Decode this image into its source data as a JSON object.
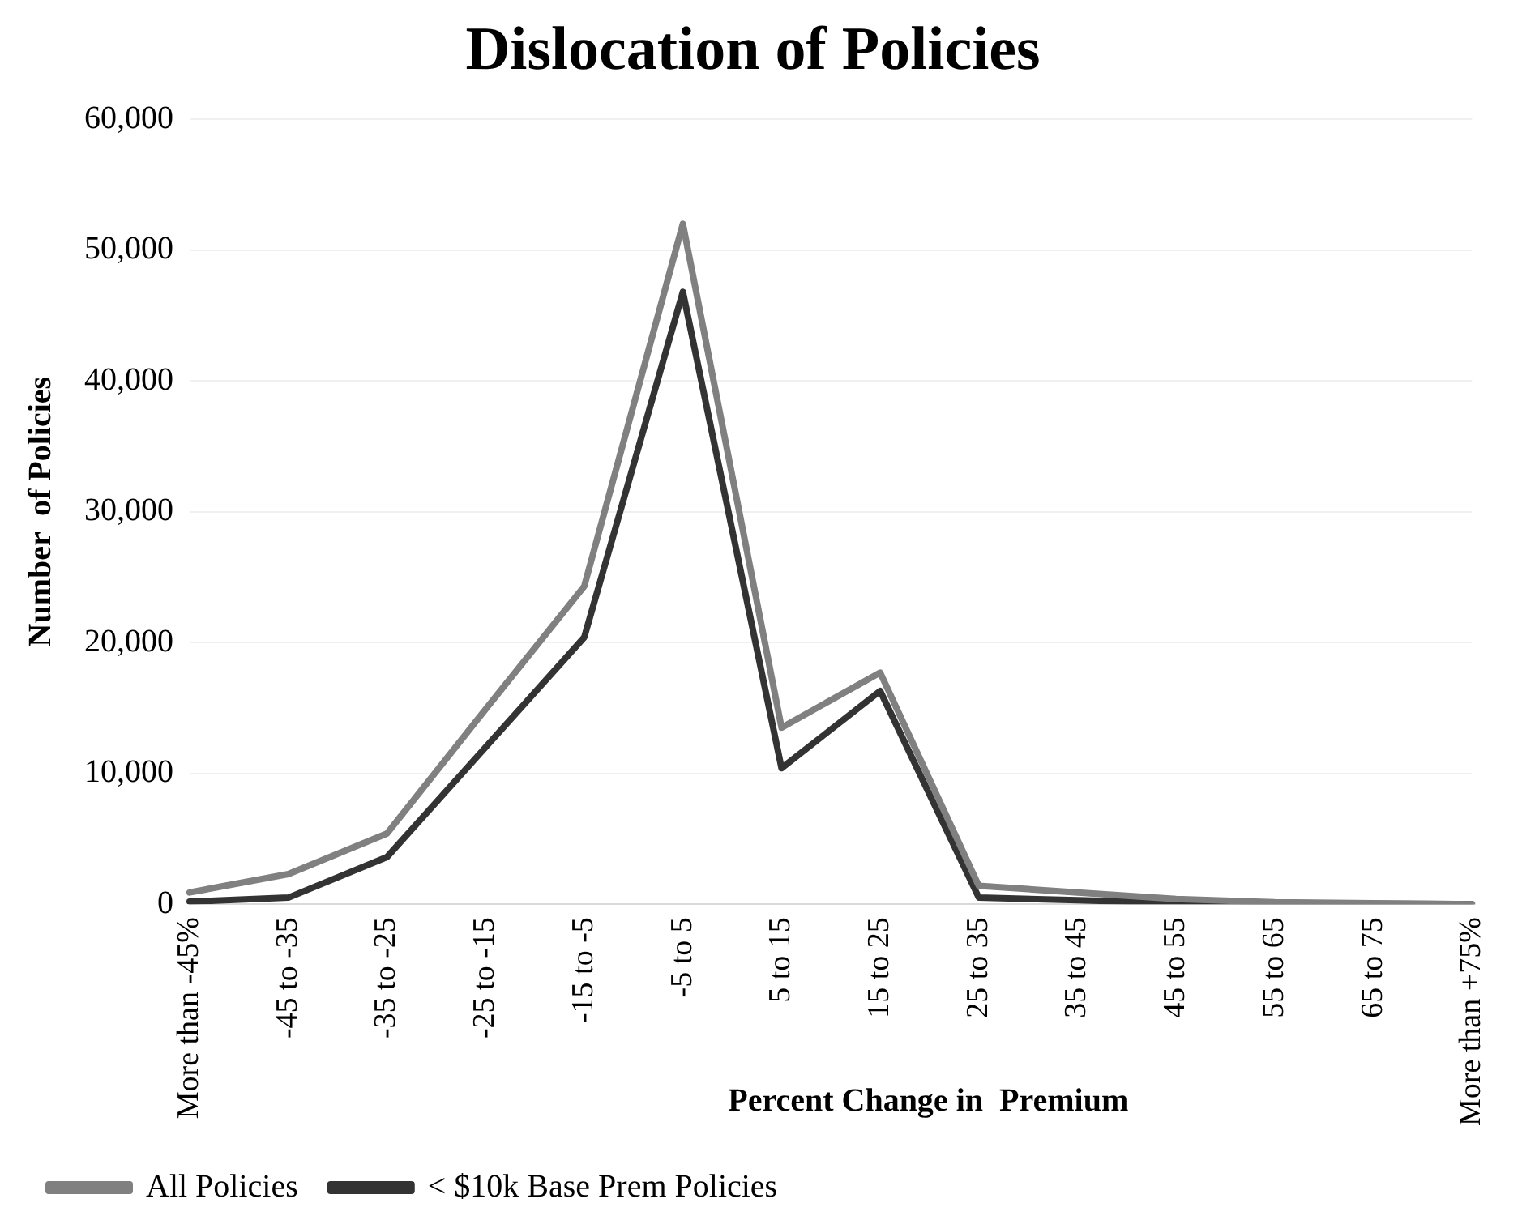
{
  "chart_data": {
    "type": "line",
    "title": "Dislocation of Policies",
    "xlabel": "Percent Change in  Premium",
    "ylabel": "Number  of Policies",
    "categories": [
      "More than -45%",
      "-45 to -35",
      "-35 to -25",
      "-25 to -15",
      "-15 to -5",
      "-5 to 5",
      "5 to 15",
      "15 to 25",
      "25 to 35",
      "35 to 45",
      "45 to 55",
      "55 to 65",
      "65 to 75",
      "More than +75%"
    ],
    "series": [
      {
        "name": "All Policies",
        "color": "#808080",
        "values": [
          900,
          2300,
          5400,
          14900,
          24300,
          52000,
          13500,
          17700,
          1400,
          900,
          400,
          150,
          80,
          0
        ]
      },
      {
        "name": "< $10k Base Prem Policies",
        "color": "#333333",
        "values": [
          200,
          500,
          3600,
          12000,
          20400,
          46800,
          10400,
          16300,
          500,
          300,
          100,
          50,
          20,
          0
        ]
      }
    ],
    "ylim": [
      0,
      60000
    ],
    "yticks": [
      {
        "value": 0,
        "label": "0"
      },
      {
        "value": 10000,
        "label": "10,000"
      },
      {
        "value": 20000,
        "label": "20,000"
      },
      {
        "value": 30000,
        "label": "30,000"
      },
      {
        "value": 40000,
        "label": "40,000"
      },
      {
        "value": 50000,
        "label": "50,000"
      },
      {
        "value": 60000,
        "label": "60,000"
      }
    ],
    "grid": "y",
    "legend": "bottom",
    "marker": "none",
    "line_style": "solid"
  }
}
